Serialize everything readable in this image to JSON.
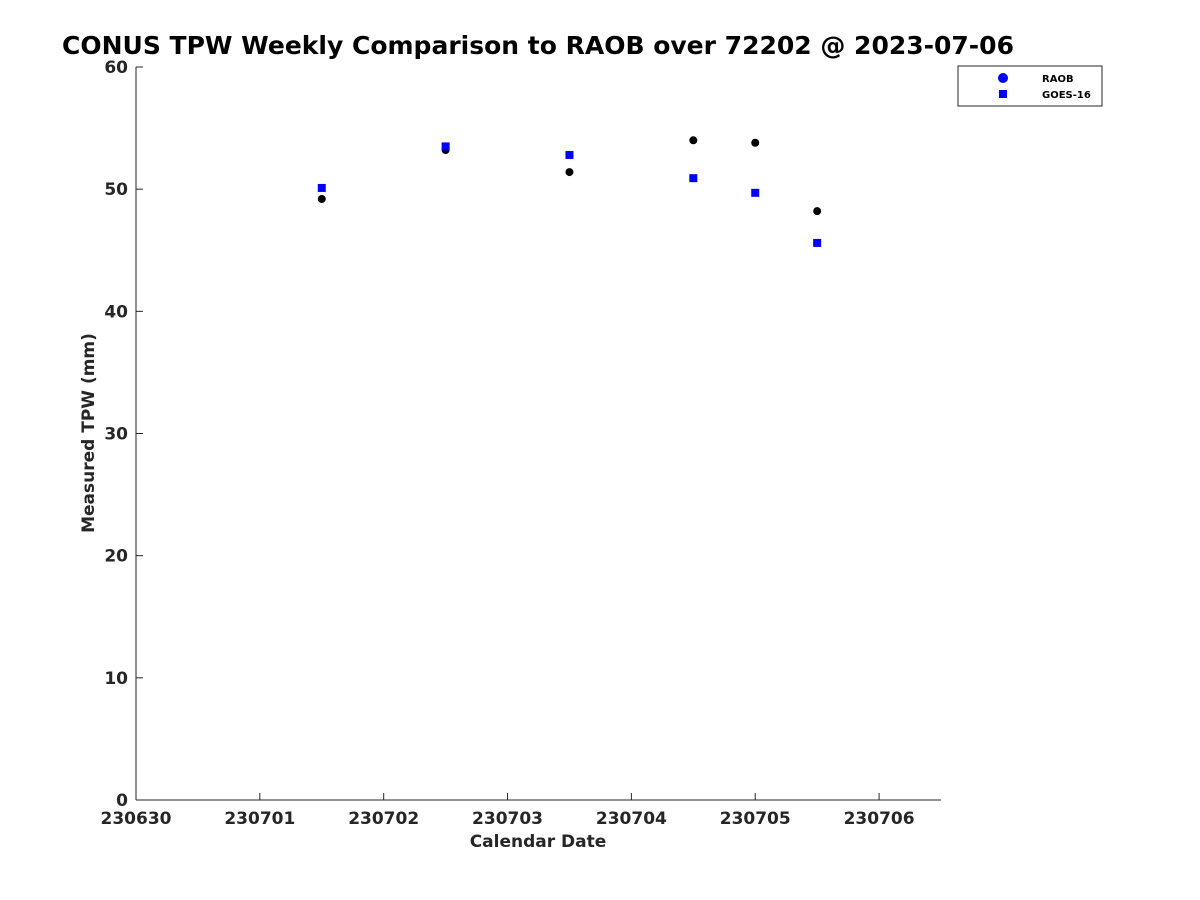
{
  "chart_data": {
    "type": "scatter",
    "title": "CONUS TPW Weekly Comparison to RAOB over 72202 @ 2023-07-06",
    "xlabel": "Calendar Date",
    "ylabel": "Measured TPW (mm)",
    "xlim": [
      0,
      6.5
    ],
    "ylim": [
      0,
      60
    ],
    "x_ticks": [
      {
        "value": 0,
        "label": "230630"
      },
      {
        "value": 1,
        "label": "230701"
      },
      {
        "value": 2,
        "label": "230702"
      },
      {
        "value": 3,
        "label": "230703"
      },
      {
        "value": 4,
        "label": "230704"
      },
      {
        "value": 5,
        "label": "230705"
      },
      {
        "value": 6,
        "label": "230706"
      }
    ],
    "y_ticks": [
      0,
      10,
      20,
      30,
      40,
      50,
      60
    ],
    "grid": false,
    "legend_position": "top-right",
    "series": [
      {
        "name": "RAOB",
        "marker": "circle",
        "color": "#000000",
        "legend_color": "#0000ff",
        "x": [
          1.5,
          2.5,
          3.5,
          4.5,
          5.0,
          5.5
        ],
        "y": [
          49.2,
          53.2,
          51.4,
          54.0,
          53.8,
          48.2
        ]
      },
      {
        "name": "GOES-16",
        "marker": "square",
        "color": "#0000ff",
        "legend_color": "#0000ff",
        "x": [
          1.5,
          2.5,
          3.5,
          4.5,
          5.0,
          5.5
        ],
        "y": [
          50.1,
          53.5,
          52.8,
          50.9,
          49.7,
          45.6
        ]
      }
    ]
  }
}
